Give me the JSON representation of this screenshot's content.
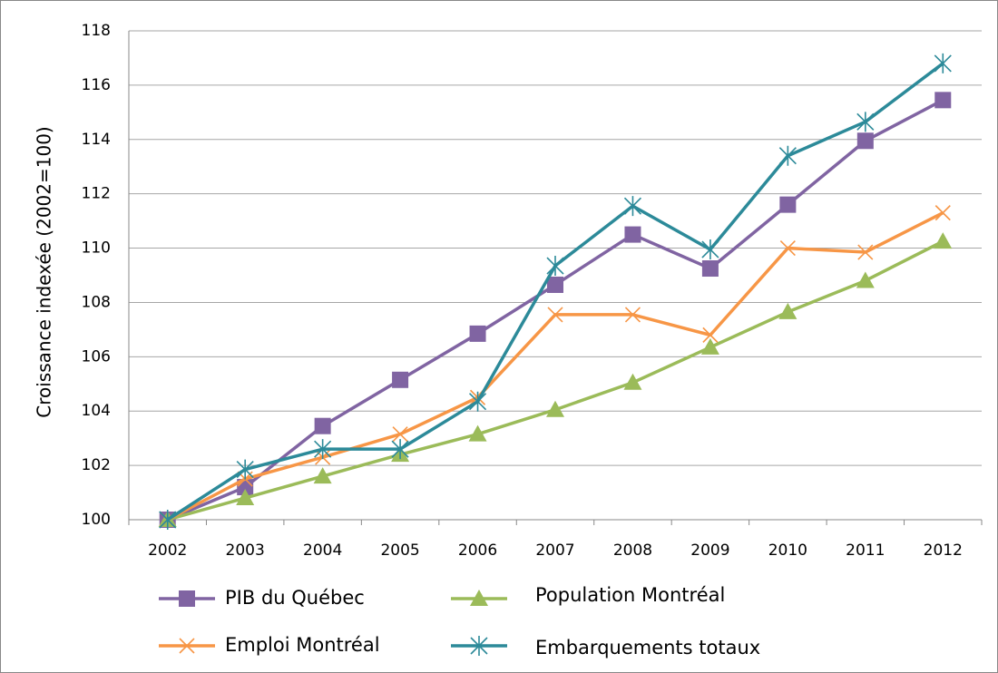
{
  "chart_data": {
    "type": "line",
    "y_label": "Croissance indexée (2002=100)",
    "categories": [
      "2002",
      "2003",
      "2004",
      "2005",
      "2006",
      "2007",
      "2008",
      "2009",
      "2010",
      "2011",
      "2012"
    ],
    "series": [
      {
        "name": "PIB du Québec",
        "color": "#8064a2",
        "marker": "square",
        "values": [
          100,
          101.2,
          103.45,
          105.15,
          106.85,
          108.65,
          110.5,
          109.25,
          111.6,
          113.95,
          115.45
        ]
      },
      {
        "name": "Population Montréal",
        "color": "#9bbb59",
        "marker": "triangle",
        "values": [
          100,
          100.8,
          101.6,
          102.4,
          103.15,
          104.05,
          105.05,
          106.35,
          107.65,
          108.8,
          110.25
        ]
      },
      {
        "name": "Emploi Montréal",
        "color": "#f79646",
        "marker": "x",
        "values": [
          100,
          101.5,
          102.3,
          103.15,
          104.5,
          107.55,
          107.55,
          106.8,
          110.0,
          109.85,
          111.3
        ]
      },
      {
        "name": "Embarquements totaux",
        "color": "#2c8a99",
        "marker": "star",
        "values": [
          100,
          101.85,
          102.6,
          102.6,
          104.35,
          109.35,
          111.55,
          109.95,
          113.4,
          114.65,
          116.8
        ]
      }
    ],
    "ylim": [
      100,
      118
    ],
    "yticks": [
      100,
      102,
      104,
      106,
      108,
      110,
      112,
      114,
      116,
      118
    ],
    "grid": true
  }
}
